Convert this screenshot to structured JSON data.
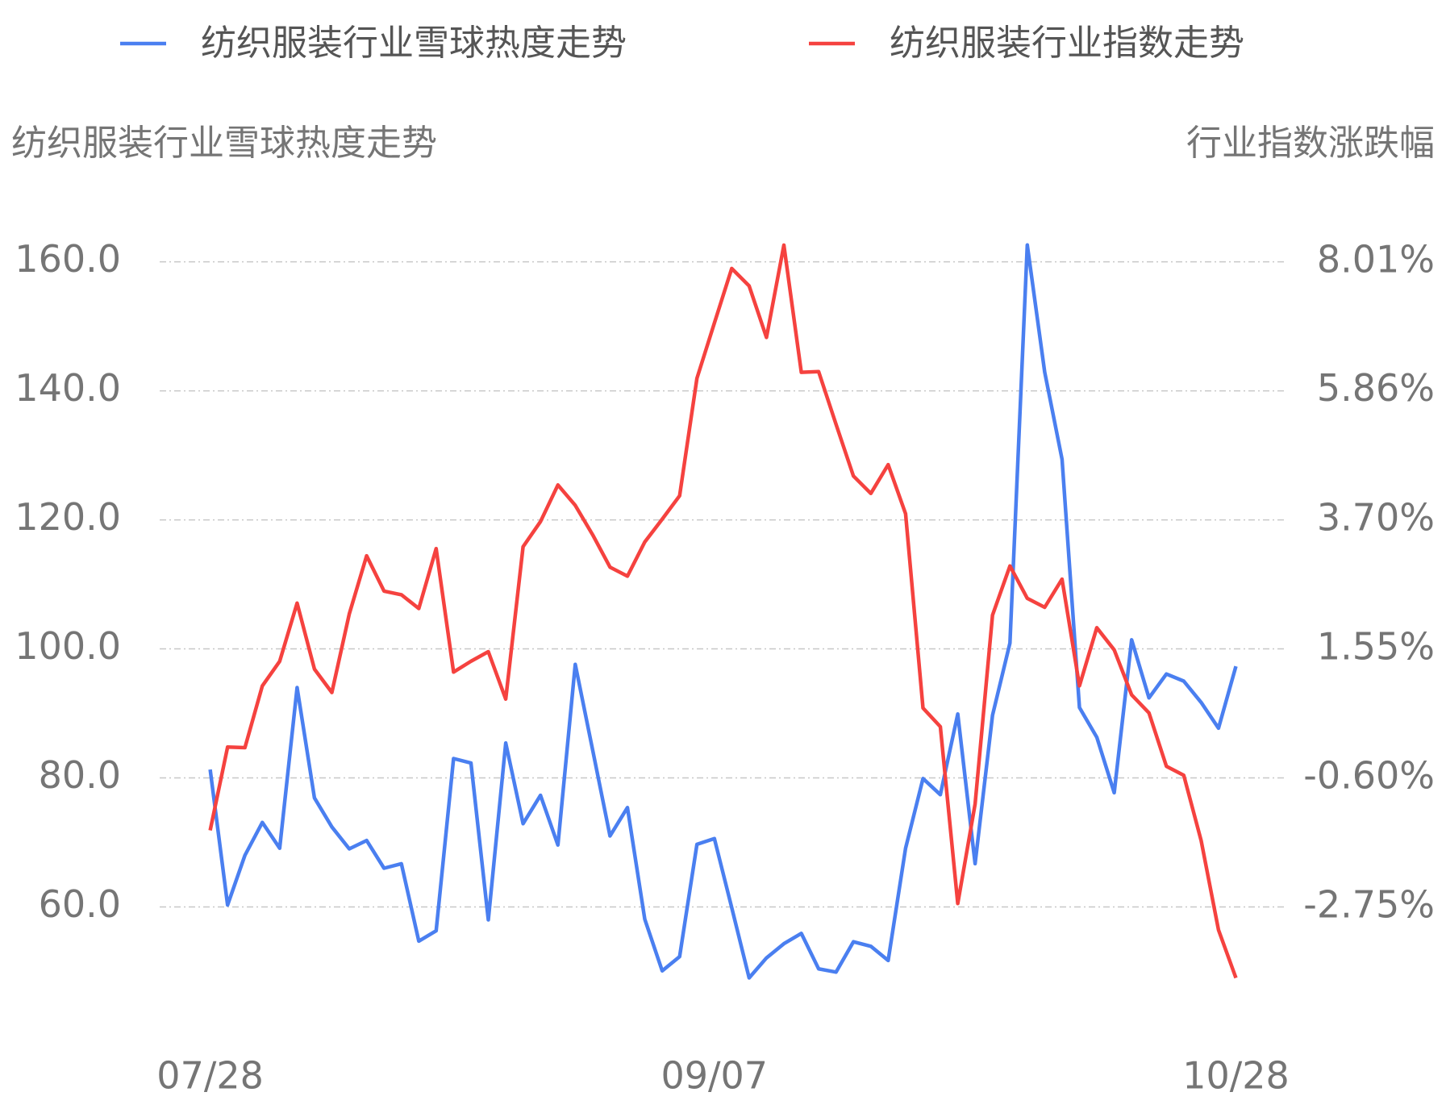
{
  "chart_data": {
    "type": "line",
    "legend": [
      "纺织服装行业雪球热度走势",
      "纺织服装行业指数走势"
    ],
    "y_title": "纺织服装行业雪球热度走势",
    "y2_title": "行业指数涨跌幅",
    "categories": [
      "07/28",
      null,
      null,
      null,
      null,
      null,
      null,
      null,
      null,
      null,
      null,
      null,
      null,
      null,
      null,
      null,
      null,
      null,
      null,
      null,
      null,
      null,
      null,
      null,
      null,
      null,
      null,
      null,
      null,
      "09/07",
      null,
      null,
      null,
      null,
      null,
      null,
      null,
      null,
      null,
      null,
      null,
      null,
      null,
      null,
      null,
      null,
      null,
      null,
      null,
      null,
      null,
      null,
      null,
      null,
      null,
      null,
      null,
      null,
      null,
      "10/28"
    ],
    "series": [
      {
        "name": "纺织服装行业雪球热度走势",
        "color": "#4a7ff0",
        "axis": "y",
        "values": [
          81.3,
          60.3,
          68.0,
          73.1,
          69.1,
          94.0,
          76.9,
          72.4,
          69.0,
          70.3,
          66.0,
          66.7,
          54.7,
          56.3,
          83.0,
          82.3,
          58.0,
          85.4,
          72.9,
          77.3,
          69.6,
          97.6,
          84.3,
          71.0,
          75.4,
          58.1,
          50.1,
          52.3,
          69.7,
          70.6,
          59.9,
          49.0,
          52.1,
          54.3,
          55.9,
          50.4,
          49.9,
          54.6,
          53.9,
          51.7,
          69.1,
          79.9,
          77.4,
          89.9,
          66.7,
          89.7,
          100.9,
          162.6,
          142.9,
          129.4,
          90.9,
          86.3,
          77.7,
          101.4,
          92.4,
          96.1,
          95.0,
          91.7,
          87.7,
          97.3
        ]
      },
      {
        "name": "纺织服装行业指数走势",
        "color": "#f5423f",
        "axis": "y2",
        "values": [
          -1.47,
          -0.08,
          -0.09,
          0.94,
          1.35,
          2.32,
          1.22,
          0.83,
          2.14,
          3.11,
          2.52,
          2.46,
          2.23,
          3.23,
          1.17,
          1.35,
          1.51,
          0.72,
          3.26,
          3.68,
          4.29,
          3.95,
          3.46,
          2.92,
          2.77,
          3.34,
          3.72,
          4.11,
          6.07,
          6.99,
          7.9,
          7.61,
          6.75,
          8.29,
          6.17,
          6.18,
          5.3,
          4.44,
          4.15,
          4.63,
          3.81,
          0.57,
          0.26,
          -2.69,
          -1.03,
          2.12,
          2.94,
          2.4,
          2.25,
          2.72,
          0.94,
          1.91,
          1.54,
          0.79,
          0.49,
          -0.4,
          -0.55,
          -1.64,
          -3.13,
          -3.93
        ]
      }
    ],
    "ylim": [
      45,
      165
    ],
    "yticks": [
      {
        "value": 60,
        "label": "60.0"
      },
      {
        "value": 80,
        "label": "80.0"
      },
      {
        "value": 100,
        "label": "100.0"
      },
      {
        "value": 120,
        "label": "120.0"
      },
      {
        "value": 140,
        "label": "140.0"
      },
      {
        "value": 160,
        "label": "160.0"
      }
    ],
    "y2lim": [
      -4.36,
      8.55
    ],
    "y2ticks": [
      {
        "value": -2.75,
        "label": "-2.75%"
      },
      {
        "value": -0.6,
        "label": "-0.60%"
      },
      {
        "value": 1.55,
        "label": "1.55%"
      },
      {
        "value": 3.7,
        "label": "3.70%"
      },
      {
        "value": 5.86,
        "label": "5.86%"
      },
      {
        "value": 8.01,
        "label": "8.01%"
      }
    ],
    "grid": true
  }
}
